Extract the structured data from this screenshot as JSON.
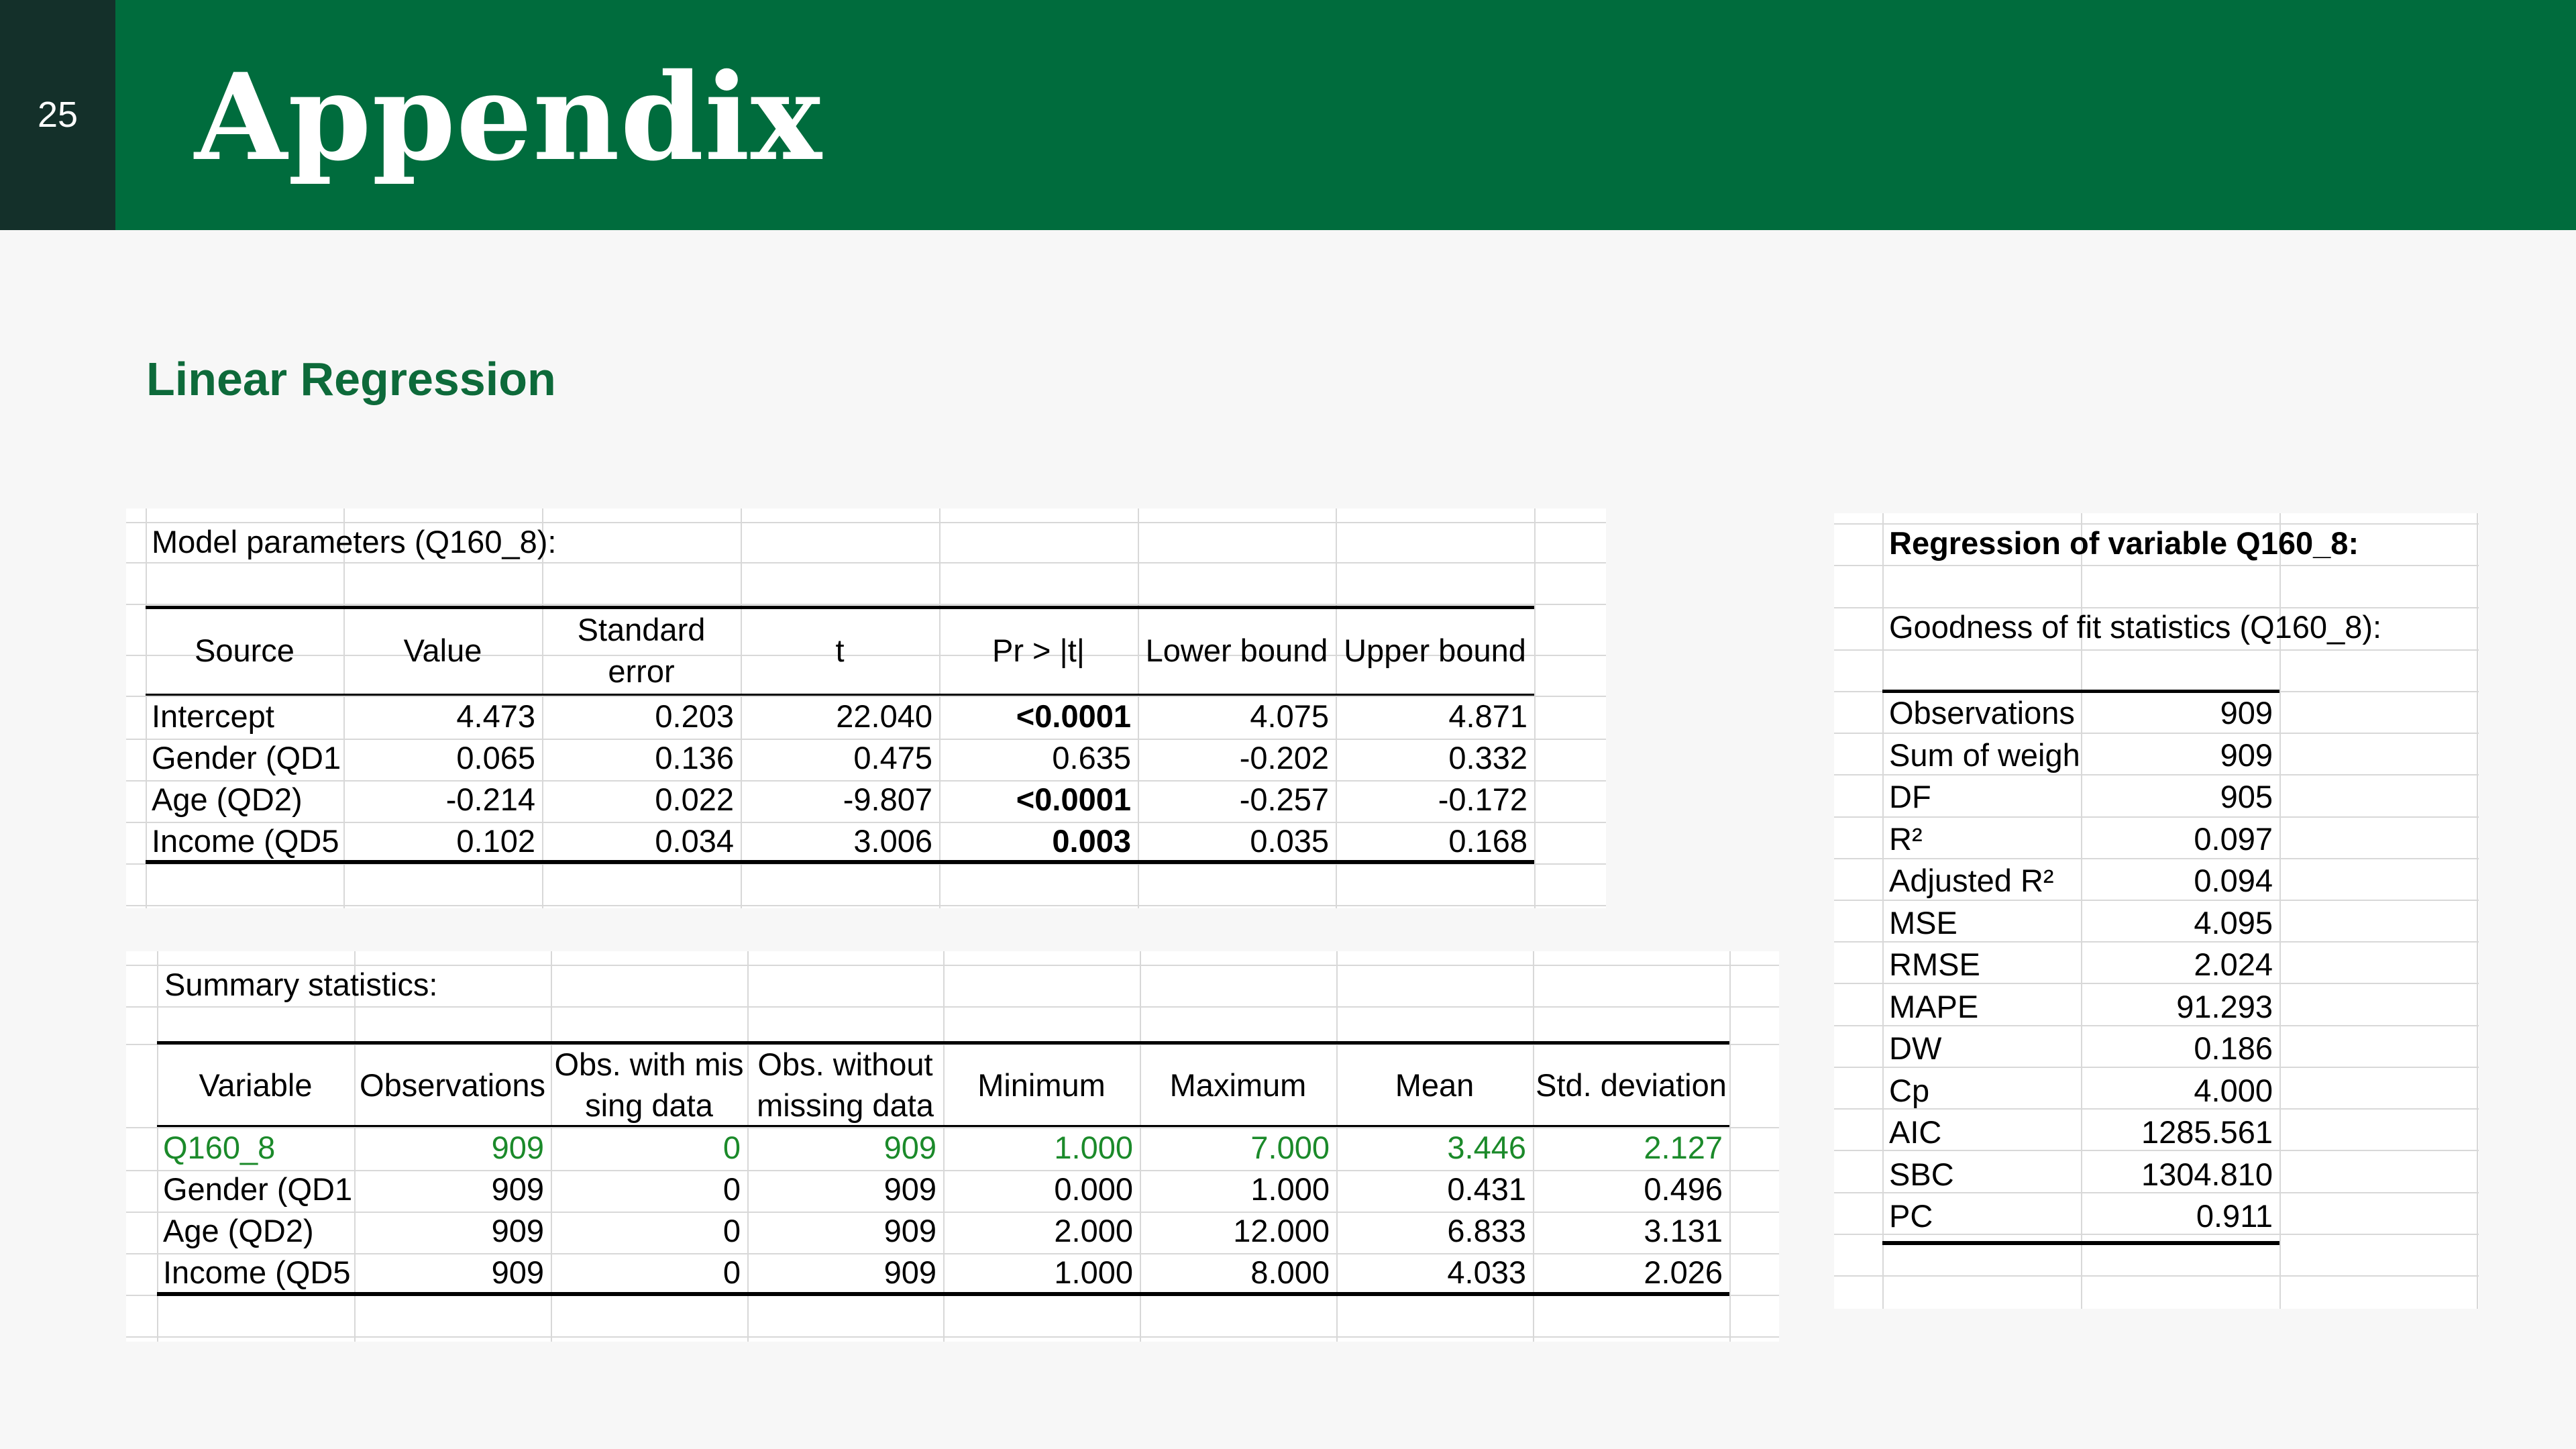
{
  "slide": {
    "page_number": "25",
    "title": "Appendix",
    "section_title": "Linear Regression"
  },
  "model_parameters": {
    "caption": "Model parameters (Q160_8):",
    "headers": [
      "Source",
      "Value",
      "Standard error",
      "t",
      "Pr > |t|",
      "Lower bound",
      "Upper bound"
    ],
    "rows": [
      [
        "Intercept",
        "4.473",
        "0.203",
        "22.040",
        "<0.0001",
        "4.075",
        "4.871"
      ],
      [
        "Gender (QD1",
        "0.065",
        "0.136",
        "0.475",
        "0.635",
        "-0.202",
        "0.332"
      ],
      [
        "Age (QD2)",
        "-0.214",
        "0.022",
        "-9.807",
        "<0.0001",
        "-0.257",
        "-0.172"
      ],
      [
        "Income (QD5",
        "0.102",
        "0.034",
        "3.006",
        "0.003",
        "0.035",
        "0.168"
      ]
    ],
    "bold_pvalues": [
      true,
      false,
      true,
      true
    ]
  },
  "summary_statistics": {
    "caption": "Summary statistics:",
    "headers": [
      "Variable",
      "Observations",
      "Obs. with missing data",
      "Obs. without missing data",
      "Minimum",
      "Maximum",
      "Mean",
      "Std. deviation"
    ],
    "rows": [
      [
        "Q160_8",
        "909",
        "0",
        "909",
        "1.000",
        "7.000",
        "3.446",
        "2.127"
      ],
      [
        "Gender (QD1",
        "909",
        "0",
        "909",
        "0.000",
        "1.000",
        "0.431",
        "0.496"
      ],
      [
        "Age (QD2)",
        "909",
        "0",
        "909",
        "2.000",
        "12.000",
        "6.833",
        "3.131"
      ],
      [
        "Income (QD5",
        "909",
        "0",
        "909",
        "1.000",
        "8.000",
        "4.033",
        "2.026"
      ]
    ],
    "highlight_color": "#1b8a2a"
  },
  "regression": {
    "title": "Regression of variable Q160_8:",
    "caption": "Goodness of fit statistics (Q160_8):",
    "rows": [
      [
        "Observations",
        "909"
      ],
      [
        "Sum of weigh",
        "909"
      ],
      [
        "DF",
        "905"
      ],
      [
        "R²",
        "0.097"
      ],
      [
        "Adjusted R²",
        "0.094"
      ],
      [
        "MSE",
        "4.095"
      ],
      [
        "RMSE",
        "2.024"
      ],
      [
        "MAPE",
        "91.293"
      ],
      [
        "DW",
        "0.186"
      ],
      [
        "Cp",
        "4.000"
      ],
      [
        "AIC",
        "1285.561"
      ],
      [
        "SBC",
        "1304.810"
      ],
      [
        "PC",
        "0.911"
      ]
    ]
  },
  "colors": {
    "header_band": "#006c3d",
    "page_tab": "#14302a",
    "section_title": "#0d6a3a",
    "highlight": "#1b8a2a"
  }
}
